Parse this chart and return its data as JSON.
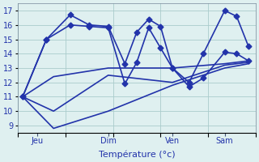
{
  "background_color": "#dff0f0",
  "grid_color": "#aacccc",
  "line_color": "#2233aa",
  "xlabel": "Température (°c)",
  "xlabel_color": "#2233aa",
  "ylim": [
    8.5,
    17.5
  ],
  "yticks": [
    9,
    10,
    11,
    12,
    13,
    14,
    15,
    16,
    17
  ],
  "day_labels": [
    "Jeu",
    "Dim",
    "Ven",
    "Sam"
  ],
  "day_positions": [
    0.08,
    0.38,
    0.65,
    0.87
  ],
  "lines": [
    {
      "x": [
        0.02,
        0.12,
        0.22,
        0.3,
        0.38,
        0.45,
        0.5,
        0.55,
        0.6,
        0.65,
        0.72,
        0.78,
        0.87,
        0.92,
        0.97
      ],
      "y": [
        11.0,
        15.0,
        16.7,
        16.0,
        15.9,
        13.3,
        15.5,
        16.4,
        15.9,
        13.0,
        12.0,
        14.0,
        17.0,
        16.6,
        14.5
      ]
    },
    {
      "x": [
        0.02,
        0.12,
        0.22,
        0.3,
        0.38,
        0.45,
        0.5,
        0.55,
        0.6,
        0.65,
        0.72,
        0.78,
        0.87,
        0.92,
        0.97
      ],
      "y": [
        11.0,
        15.0,
        16.0,
        15.9,
        15.8,
        11.9,
        13.4,
        15.8,
        14.4,
        13.0,
        11.7,
        12.3,
        14.1,
        14.0,
        13.5
      ]
    },
    {
      "x": [
        0.02,
        0.15,
        0.38,
        0.65,
        0.87,
        0.97
      ],
      "y": [
        11.0,
        12.4,
        13.0,
        13.0,
        13.3,
        13.5
      ]
    },
    {
      "x": [
        0.02,
        0.15,
        0.38,
        0.65,
        0.87,
        0.97
      ],
      "y": [
        11.0,
        10.0,
        12.5,
        12.0,
        13.2,
        13.4
      ]
    },
    {
      "x": [
        0.02,
        0.15,
        0.38,
        0.65,
        0.87,
        0.97
      ],
      "y": [
        11.0,
        8.8,
        10.0,
        11.8,
        13.0,
        13.3
      ]
    }
  ]
}
